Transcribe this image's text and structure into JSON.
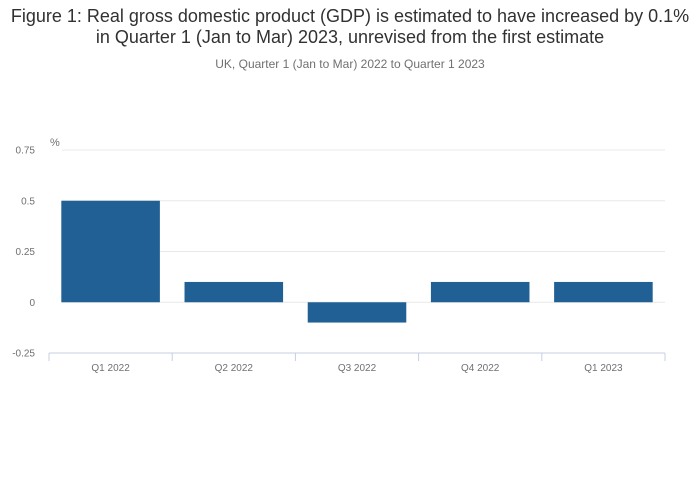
{
  "chart_data": {
    "type": "bar",
    "title": "Figure 1: Real gross domestic product (GDP) is estimated to have increased by 0.1% in Quarter 1 (Jan to Mar) 2023, unrevised from the first estimate",
    "subtitle": "UK, Quarter 1 (Jan to Mar) 2022 to Quarter 1 2023",
    "ylabel": "%",
    "categories": [
      "Q1 2022",
      "Q2 2022",
      "Q3 2022",
      "Q4 2022",
      "Q1 2023"
    ],
    "values": [
      0.5,
      0.1,
      -0.1,
      0.1,
      0.1
    ],
    "yticks": [
      -0.25,
      0,
      0.25,
      0.5,
      0.75
    ],
    "ytick_labels": [
      "-0.25",
      "0",
      "0.25",
      "0.5",
      "0.75"
    ],
    "ylim": [
      -0.25,
      0.75
    ],
    "grid": true,
    "legend": "none",
    "bar_color": "#206095",
    "grid_color": "#e8e8e8",
    "axis_color": "#c5cfe0",
    "text_color": "#707071"
  }
}
